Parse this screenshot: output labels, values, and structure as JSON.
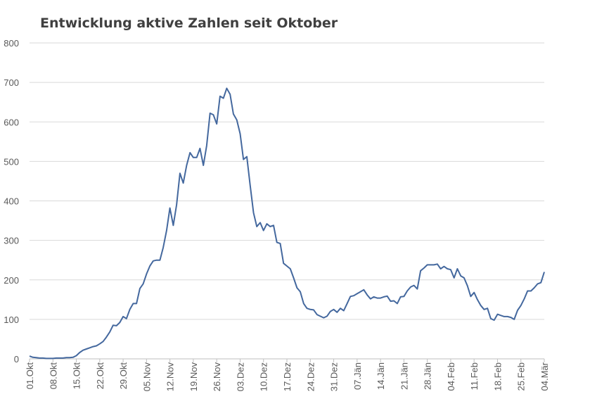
{
  "chart_data": {
    "type": "line",
    "title": "Entwicklung aktive Zahlen seit Oktober",
    "xlabel": "",
    "ylabel": "",
    "ylim": [
      0,
      800
    ],
    "yticks": [
      0,
      100,
      200,
      300,
      400,
      500,
      600,
      700,
      800
    ],
    "grid": true,
    "legend": "none",
    "x_start": "01.Okt",
    "x_end": "04.Mär",
    "xtick_labels": [
      "01.Okt",
      "08.Okt",
      "15.Okt",
      "22.Okt",
      "29.Okt",
      "05.Nov",
      "12.Nov",
      "19.Nov",
      "26.Nov",
      "03.Dez",
      "10.Dez",
      "17.Dez",
      "24.Dez",
      "31.Dez",
      "07.Jän",
      "14.Jän",
      "21.Jän",
      "28.Jän",
      "04.Feb",
      "11.Feb",
      "18.Feb",
      "25.Feb",
      "04.Mär"
    ],
    "line_color": "#44689e",
    "series": [
      {
        "values": [
          7,
          4,
          3,
          2,
          2,
          1,
          1,
          1,
          2,
          2,
          2,
          3,
          3,
          4,
          8,
          16,
          22,
          25,
          28,
          31,
          33,
          38,
          44,
          55,
          68,
          85,
          84,
          92,
          107,
          102,
          125,
          140,
          140,
          178,
          190,
          215,
          235,
          248,
          250,
          250,
          282,
          325,
          382,
          338,
          390,
          470,
          445,
          490,
          522,
          510,
          510,
          533,
          490,
          540,
          622,
          618,
          595,
          665,
          660,
          685,
          670,
          620,
          605,
          570,
          505,
          512,
          440,
          370,
          335,
          345,
          325,
          342,
          335,
          338,
          295,
          292,
          242,
          235,
          228,
          205,
          180,
          170,
          140,
          128,
          125,
          124,
          112,
          108,
          104,
          108,
          120,
          125,
          118,
          128,
          122,
          140,
          158,
          160,
          165,
          170,
          175,
          162,
          152,
          157,
          154,
          154,
          157,
          159,
          146,
          147,
          140,
          157,
          158,
          172,
          182,
          186,
          177,
          223,
          230,
          238,
          238,
          238,
          240,
          228,
          234,
          228,
          226,
          205,
          228,
          210,
          205,
          185,
          158,
          168,
          150,
          135,
          125,
          128,
          102,
          98,
          113,
          110,
          107,
          107,
          105,
          100,
          123,
          135,
          152,
          172,
          172,
          180,
          190,
          193,
          220
        ]
      }
    ]
  }
}
